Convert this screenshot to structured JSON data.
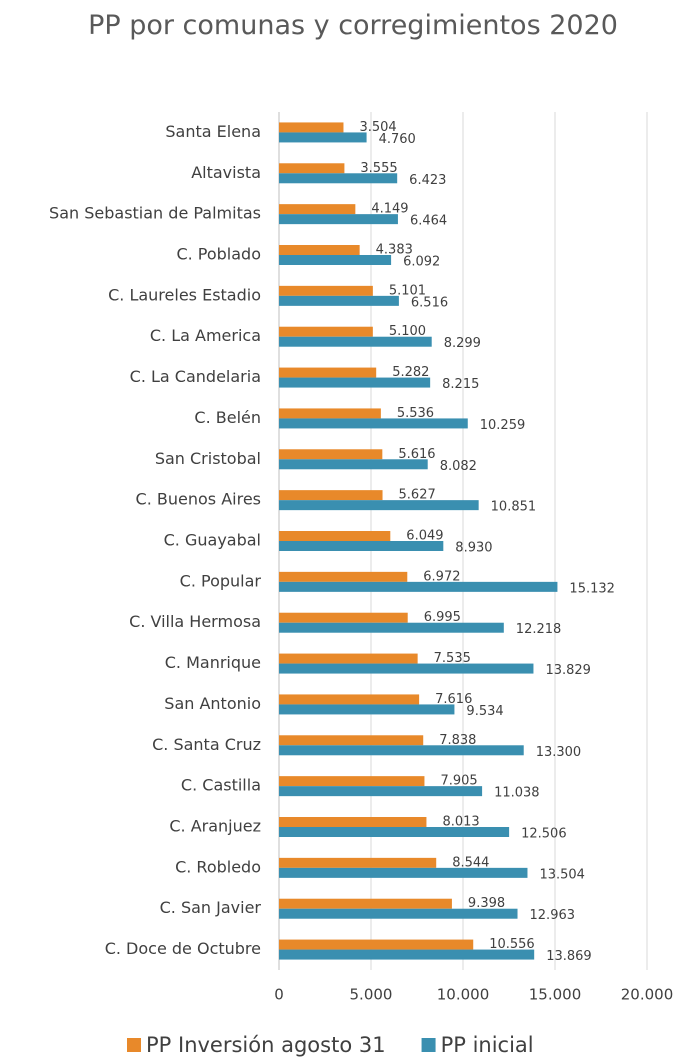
{
  "chart_data": {
    "type": "barh",
    "title": "PP por comunas y corregimientos 2020",
    "categories": [
      "Santa Elena",
      "Altavista",
      "San Sebastian de Palmitas",
      "C. Poblado",
      "C. Laureles Estadio",
      "C. La America",
      "C. La Candelaria",
      "C. Belén",
      "San Cristobal",
      "C. Buenos Aires",
      "C. Guayabal",
      "C. Popular",
      "C. Villa Hermosa",
      "C. Manrique",
      "San Antonio",
      "C. Santa Cruz",
      "C. Castilla",
      "C. Aranjuez",
      "C. Robledo",
      "C. San Javier",
      "C. Doce de Octubre"
    ],
    "series": [
      {
        "name": "PP Inversión agosto 31",
        "color": "#e8892a",
        "values": [
          3504,
          3555,
          4149,
          4383,
          5101,
          5100,
          5282,
          5536,
          5616,
          5627,
          6049,
          6972,
          6995,
          7535,
          7616,
          7838,
          7905,
          8013,
          8544,
          9398,
          10556
        ],
        "value_labels": [
          "3.504",
          "3.555",
          "4.149",
          "4.383",
          "5.101",
          "5.100",
          "5.282",
          "5.536",
          "5.616",
          "5.627",
          "6.049",
          "6.972",
          "6.995",
          "7.535",
          "7.616",
          "7.838",
          "7.905",
          "8.013",
          "8.544",
          "9.398",
          "10.556"
        ]
      },
      {
        "name": "PP inicial",
        "color": "#3a8fb0",
        "values": [
          4760,
          6423,
          6464,
          6092,
          6516,
          8299,
          8215,
          10259,
          8082,
          10851,
          8930,
          15132,
          12218,
          13829,
          9534,
          13300,
          11038,
          12506,
          13504,
          12963,
          13869
        ],
        "value_labels": [
          "4.760",
          "6.423",
          "6.464",
          "6.092",
          "6.516",
          "8.299",
          "8.215",
          "10.259",
          "8.082",
          "10.851",
          "8.930",
          "15.132",
          "12.218",
          "13.829",
          "9.534",
          "13.300",
          "11.038",
          "12.506",
          "13.504",
          "12.963",
          "13.869"
        ]
      }
    ],
    "xlim": [
      0,
      20000
    ],
    "xticks": [
      0,
      {
        "value": 5000,
        "label": "5.000"
      },
      {
        "value": 10000,
        "label": "10.000"
      },
      {
        "value": 15000,
        "label": "15.000"
      },
      {
        "value": 20000,
        "label": "20.000"
      }
    ],
    "grid": true,
    "legend": "bottom"
  }
}
